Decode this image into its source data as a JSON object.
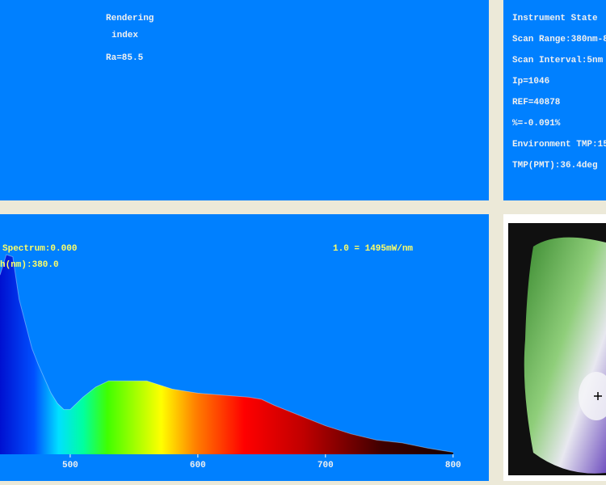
{
  "rendering": {
    "title": "Rendering",
    "subtitle": "index",
    "ra": "Ra=85.5"
  },
  "instrument": {
    "title": "Instrument State",
    "lines": [
      "Scan Range:380nm-8",
      "Scan Interval:5nm",
      "Ip=1046",
      "REF=40878",
      "%=-0.091%",
      "Environment TMP:15",
      "TMP(PMT):36.4deg"
    ]
  },
  "chart_data": {
    "type": "area",
    "labels": [
      "Spectrum:0.000",
      "h(nm):380.0",
      "1.0 = 1495mW/nm"
    ],
    "x": [
      445,
      450,
      455,
      460,
      465,
      470,
      475,
      480,
      485,
      490,
      495,
      500,
      510,
      520,
      530,
      540,
      550,
      560,
      570,
      580,
      600,
      620,
      640,
      650,
      660,
      680,
      700,
      720,
      740,
      760,
      780,
      790,
      800
    ],
    "values": [
      0.88,
      0.98,
      0.97,
      0.76,
      0.64,
      0.52,
      0.44,
      0.37,
      0.3,
      0.25,
      0.22,
      0.22,
      0.28,
      0.33,
      0.36,
      0.36,
      0.36,
      0.36,
      0.34,
      0.32,
      0.3,
      0.29,
      0.28,
      0.27,
      0.24,
      0.19,
      0.14,
      0.1,
      0.07,
      0.056,
      0.03,
      0.02,
      0.01
    ],
    "xlim": [
      445,
      828
    ],
    "ylim": [
      0,
      1
    ],
    "xticks": [
      500,
      600,
      700,
      800
    ]
  }
}
